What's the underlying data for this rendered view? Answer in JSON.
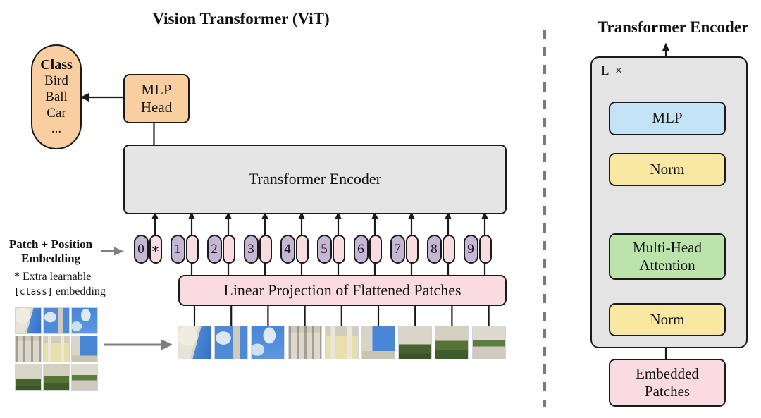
{
  "left_panel": {
    "title": "Vision Transformer (ViT)",
    "class_pill": {
      "heading": "Class",
      "items": [
        "Bird",
        "Ball",
        "Car",
        "..."
      ]
    },
    "mlp_head": [
      "MLP",
      "Head"
    ],
    "encoder_label": "Transformer Encoder",
    "linear_projection_label": "Linear Projection of Flattened Patches",
    "patch_embedding_label": [
      "Patch + Position",
      "Embedding"
    ],
    "footnote": {
      "line1": "* Extra learnable",
      "code": "[class]",
      "rest": " embedding"
    },
    "tokens": [
      "0",
      "1",
      "2",
      "3",
      "4",
      "5",
      "6",
      "7",
      "8",
      "9"
    ],
    "class_token_symbol": "∗",
    "patches": [
      "dome-and-sky",
      "sky-and-tower",
      "blue-sky-clouds",
      "white-facade",
      "yellow-facade-towers",
      "tower-and-sky",
      "building-and-hedge",
      "building-and-trees",
      "courtyard-and-bushes"
    ]
  },
  "right_panel": {
    "title": "Transformer Encoder",
    "loop_label": "L ×",
    "plus": "+",
    "blocks": {
      "mlp": "MLP",
      "norm1": "Norm",
      "mha": [
        "Multi-Head",
        "Attention"
      ],
      "norm2": "Norm",
      "embedded": [
        "Embedded",
        "Patches"
      ]
    }
  },
  "colors": {
    "orange": "#f9cfa1",
    "gray_box": "#e5e5e5",
    "pink": "#fadbe1",
    "token_purple": "#c6b6d5",
    "token_pink": "#f9dce1",
    "blue": "#c5e3f6",
    "yellow": "#f9e8a2",
    "green": "#bde3ac",
    "line": "#1a1a1a",
    "gray_arrow": "#7f7f7f"
  }
}
